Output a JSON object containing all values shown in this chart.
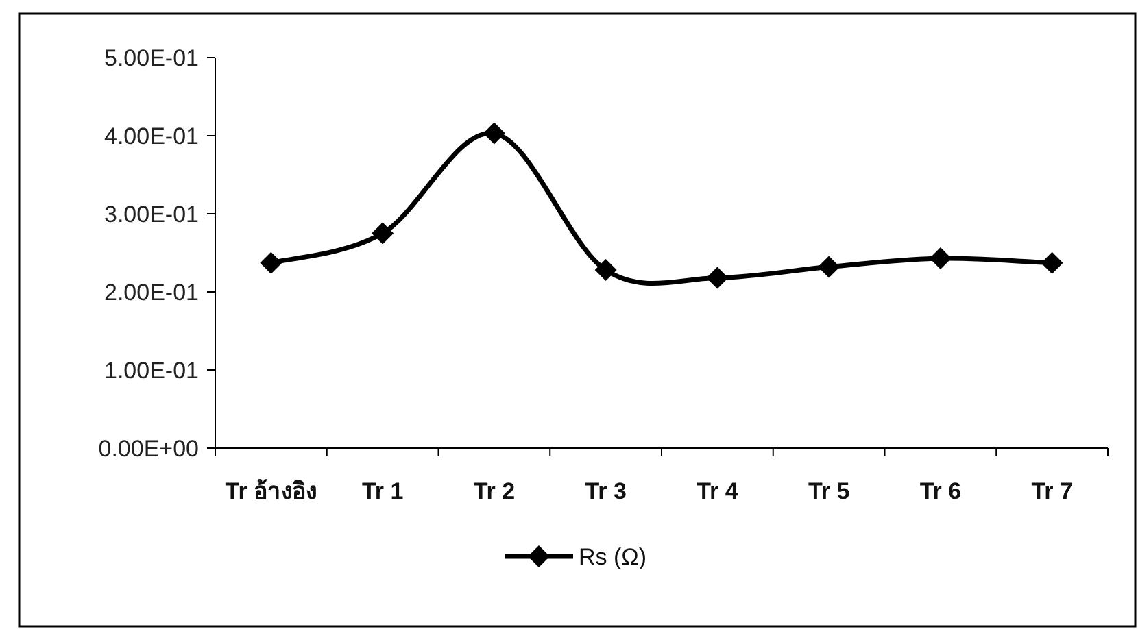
{
  "chart_data": {
    "type": "line",
    "categories": [
      "Tr อ้างอิง",
      "Tr 1",
      "Tr 2",
      "Tr 3",
      "Tr 4",
      "Tr 5",
      "Tr 6",
      "Tr 7"
    ],
    "series": [
      {
        "name": "Rs  (Ω)",
        "color": "#000000",
        "values": [
          0.237,
          0.275,
          0.403,
          0.228,
          0.218,
          0.232,
          0.243,
          0.237
        ]
      }
    ],
    "ylim": [
      0,
      0.5
    ],
    "yticks": [
      {
        "value": 0,
        "label": "0.00E+00"
      },
      {
        "value": 0.1,
        "label": "1.00E-01"
      },
      {
        "value": 0.2,
        "label": "2.00E-01"
      },
      {
        "value": 0.3,
        "label": "3.00E-01"
      },
      {
        "value": 0.4,
        "label": "4.00E-01"
      },
      {
        "value": 0.5,
        "label": "5.00E-01"
      }
    ],
    "marker": "diamond",
    "line_style": "solid",
    "legend": "bottom",
    "grid": false
  }
}
